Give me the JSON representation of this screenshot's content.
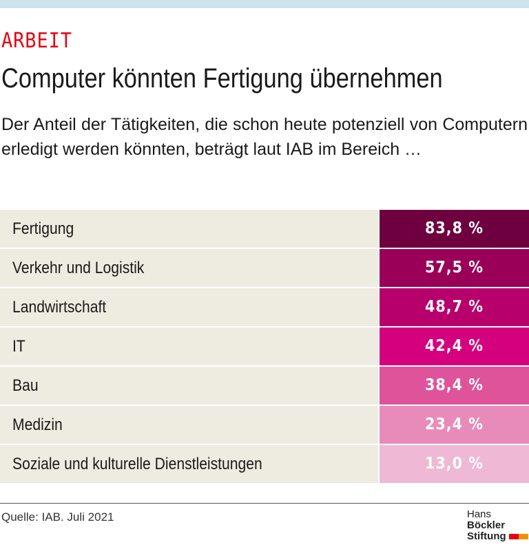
{
  "header": {
    "kicker": "ARBEIT",
    "title": "Computer könnten Fertigung übernehmen",
    "subtitle": "Der Anteil der Tätigkeiten, die schon heute potenziell von Computern erledigt werden könnten, beträgt laut IAB im Bereich …"
  },
  "chart_data": {
    "type": "table",
    "unit": "%",
    "rows": [
      {
        "label": "Fertigung",
        "value": 83.8,
        "display": "83,8 %",
        "color": "#6e0040"
      },
      {
        "label": "Verkehr und Logistik",
        "value": 57.5,
        "display": "57,5 %",
        "color": "#9a0058"
      },
      {
        "label": "Landwirtschaft",
        "value": 48.7,
        "display": "48,7 %",
        "color": "#b7006b"
      },
      {
        "label": "IT",
        "value": 42.4,
        "display": "42,4 %",
        "color": "#d5007e"
      },
      {
        "label": "Bau",
        "value": 38.4,
        "display": "38,4 %",
        "color": "#df539a"
      },
      {
        "label": "Medizin",
        "value": 23.4,
        "display": "23,4 %",
        "color": "#e88bbb"
      },
      {
        "label": "Soziale und kulturelle Dienstleistungen",
        "value": 13.0,
        "display": "13,0 %",
        "color": "#efb8d5"
      }
    ]
  },
  "footer": {
    "source": "Quelle: IAB. Juli 2021",
    "logo_line1_a": "Hans ",
    "logo_line1_b": "Böckler",
    "logo_line2": "Stiftung"
  }
}
